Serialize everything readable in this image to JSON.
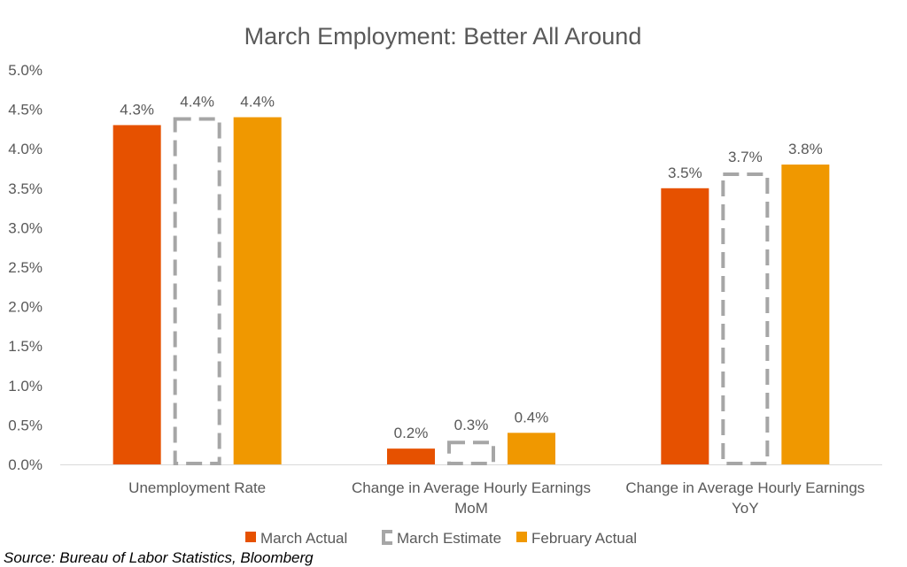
{
  "chart_data": {
    "type": "bar",
    "title": "March Employment: Better All Around",
    "categories": [
      [
        "Unemployment Rate"
      ],
      [
        "Change in Average Hourly Earnings",
        "MoM"
      ],
      [
        "Change in Average Hourly Earnings",
        "YoY"
      ]
    ],
    "series": [
      {
        "name": "March Actual",
        "values": [
          4.3,
          0.2,
          3.5
        ],
        "labels": [
          "4.3%",
          "0.2%",
          "3.5%"
        ],
        "color": "#E65100",
        "style": "solid"
      },
      {
        "name": "March Estimate",
        "values": [
          4.4,
          0.3,
          3.7
        ],
        "labels": [
          "4.4%",
          "0.3%",
          "3.7%"
        ],
        "color": "#A6A6A6",
        "style": "dashed-outline"
      },
      {
        "name": "February Actual",
        "values": [
          4.4,
          0.4,
          3.8
        ],
        "labels": [
          "4.4%",
          "0.4%",
          "3.8%"
        ],
        "color": "#F09800",
        "style": "solid"
      }
    ],
    "ylim": [
      0,
      5
    ],
    "yticks": [
      "0.0%",
      "0.5%",
      "1.0%",
      "1.5%",
      "2.0%",
      "2.5%",
      "3.0%",
      "3.5%",
      "4.0%",
      "4.5%",
      "5.0%"
    ],
    "ytick_values": [
      0,
      0.5,
      1,
      1.5,
      2,
      2.5,
      3,
      3.5,
      4,
      4.5,
      5
    ],
    "grid": false,
    "legend": "bottom",
    "xlabel": "",
    "ylabel": ""
  },
  "source": "Source: Bureau of Labor Statistics, Bloomberg"
}
